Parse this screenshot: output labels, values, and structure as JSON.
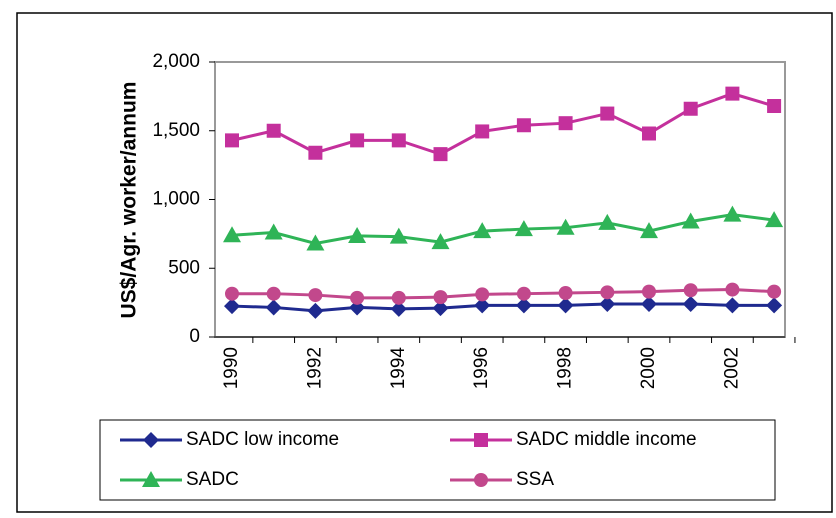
{
  "chart_data": {
    "type": "line",
    "y_label": "US$/Agr. worker/annum",
    "categories": [
      "1990",
      null,
      "1992",
      null,
      "1994",
      null,
      "1996",
      null,
      "1998",
      null,
      "2000",
      null,
      "2002",
      null
    ],
    "ylim": [
      0,
      2000
    ],
    "yticks": [
      0,
      500,
      {
        "value": 1000,
        "label": "1,000"
      },
      {
        "value": 1500,
        "label": "1,500"
      },
      {
        "value": 2000,
        "label": "2,000"
      }
    ],
    "series": [
      {
        "name": "SADC low income",
        "color": "#1f2a8f",
        "marker": "diamond",
        "values": [
          225,
          215,
          190,
          215,
          205,
          210,
          230,
          230,
          230,
          240,
          240,
          240,
          230,
          230
        ]
      },
      {
        "name": "SADC middle income",
        "color": "#c4309c",
        "marker": "square",
        "values": [
          1430,
          1500,
          1340,
          1430,
          1430,
          1330,
          1495,
          1540,
          1555,
          1625,
          1480,
          1660,
          1770,
          1680
        ]
      },
      {
        "name": "SADC",
        "color": "#2fb457",
        "marker": "triangle",
        "values": [
          740,
          760,
          680,
          735,
          730,
          690,
          770,
          785,
          795,
          830,
          770,
          840,
          890,
          850
        ]
      },
      {
        "name": "SSA",
        "color": "#c2488c",
        "marker": "circle",
        "values": [
          315,
          315,
          305,
          285,
          285,
          290,
          310,
          315,
          320,
          325,
          330,
          340,
          345,
          330
        ]
      }
    ]
  }
}
